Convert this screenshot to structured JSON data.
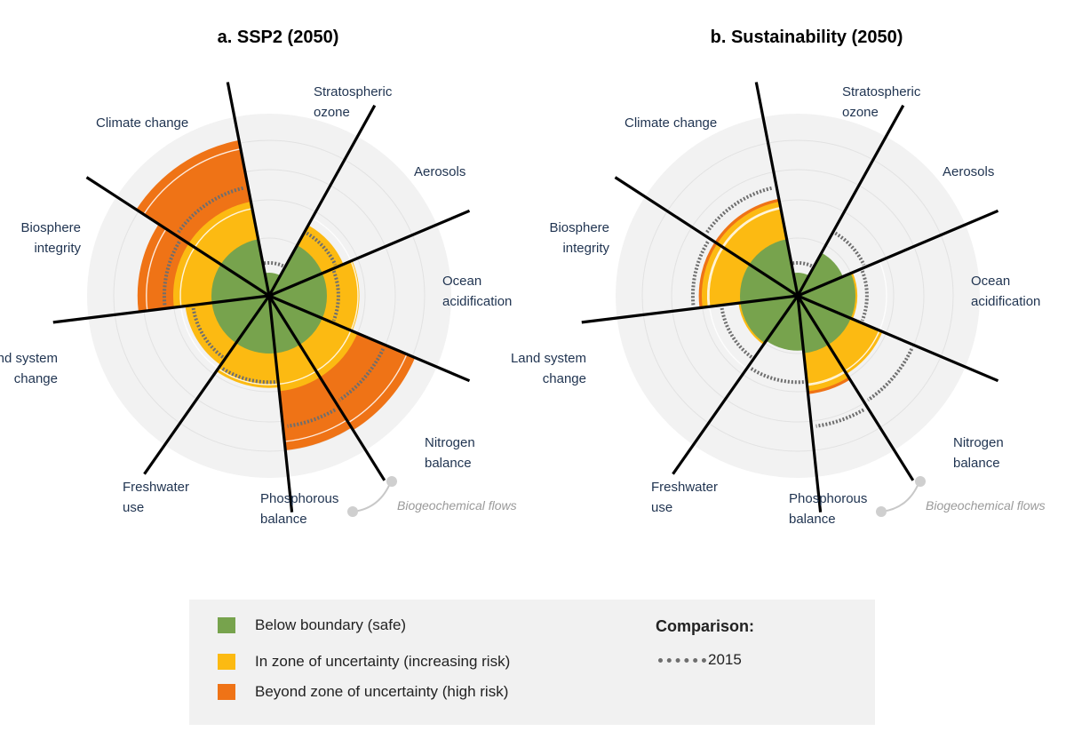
{
  "colors": {
    "safe": "#77a34d",
    "uncertainty": "#fcba12",
    "high_risk": "#ef7316",
    "background_disk": "#f2f2f2",
    "ring": "#ffffff",
    "spoke": "#000000",
    "comparison": "#6e6e6e"
  },
  "chart_data": [
    {
      "type": "radial",
      "title": "a. SSP2 (2050)",
      "categories": [
        "Stratospheric ozone",
        "Aerosols",
        "Ocean acidification",
        "Nitrogen balance",
        "Phosphorous balance",
        "Freshwater use",
        "Land system change",
        "Biosphere integrity",
        "Climate change"
      ],
      "zones": {
        "safe": 1.0,
        "uncertainty": 2.0,
        "max": 3.0
      },
      "values": [
        0.4,
        1.6,
        1.85,
        3.05,
        3.0,
        1.9,
        1.7,
        2.6,
        3.05
      ],
      "comparison_2015": [
        0.57,
        1.4,
        1.3,
        2.5,
        2.6,
        1.75,
        1.5,
        2.15,
        2.25
      ],
      "comparison_label": "2015",
      "group_label": "Biogeochemical flows"
    },
    {
      "type": "radial",
      "title": "b. Sustainability (2050)",
      "categories": [
        "Stratospheric ozone",
        "Aerosols",
        "Ocean acidification",
        "Nitrogen balance",
        "Phosphorous balance",
        "Freshwater use",
        "Land system change",
        "Biosphere integrity",
        "Climate change"
      ],
      "zones": {
        "safe": 1.0,
        "uncertainty": 2.0,
        "max": 3.0
      },
      "values": [
        0.4,
        0.85,
        1.05,
        1.9,
        2.05,
        0.95,
        1.05,
        2.05,
        2.05
      ],
      "comparison_2015": [
        0.57,
        1.4,
        1.3,
        2.5,
        2.6,
        1.75,
        1.5,
        2.15,
        2.25
      ],
      "comparison_label": "2015",
      "group_label": "Biogeochemical flows"
    }
  ],
  "panels": [
    {
      "title": "a. SSP2 (2050)",
      "labels": [
        [
          "Stratospheric",
          "ozone"
        ],
        [
          "Aerosols"
        ],
        [
          "Ocean",
          "acidification"
        ],
        [
          "Nitrogen",
          "balance"
        ],
        [
          "Phosphorous",
          "balance"
        ],
        [
          "Freshwater",
          "use"
        ],
        [
          "Land system",
          "change"
        ],
        [
          "Biosphere",
          "integrity"
        ],
        [
          "Climate change"
        ]
      ],
      "group_label": "Biogeochemical flows"
    },
    {
      "title": "b. Sustainability (2050)",
      "labels": [
        [
          "Stratospheric",
          "ozone"
        ],
        [
          "Aerosols"
        ],
        [
          "Ocean",
          "acidification"
        ],
        [
          "Nitrogen",
          "balance"
        ],
        [
          "Phosphorous",
          "balance"
        ],
        [
          "Freshwater",
          "use"
        ],
        [
          "Land system",
          "change"
        ],
        [
          "Biosphere",
          "integrity"
        ],
        [
          "Climate change"
        ]
      ],
      "group_label": "Biogeochemical flows"
    }
  ],
  "legend": {
    "items": [
      {
        "label": "Below boundary (safe)",
        "color": "#77a34d"
      },
      {
        "label": "In zone of uncertainty (increasing risk)",
        "color": "#fcba12"
      },
      {
        "label": "Beyond zone of uncertainty (high risk)",
        "color": "#ef7316"
      }
    ],
    "comparison_title": "Comparison:",
    "comparison_label": "2015"
  }
}
